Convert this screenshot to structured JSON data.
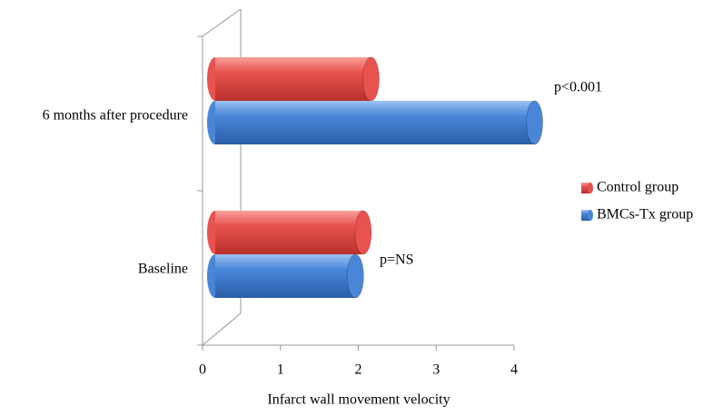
{
  "chart_data": {
    "type": "bar",
    "orientation": "horizontal",
    "categories": [
      "Baseline",
      "6 months after procedure"
    ],
    "series": [
      {
        "name": "Control group",
        "color": "#e8524f",
        "values": [
          1.9,
          2.0
        ]
      },
      {
        "name": "BMCs-Tx group",
        "color": "#4a86d8",
        "values": [
          1.8,
          4.1
        ]
      }
    ],
    "xlabel": "Infarct wall movement velocity",
    "xlim": [
      0,
      4
    ],
    "xticks": [
      0,
      1,
      2,
      3,
      4
    ],
    "annotations": [
      "p=NS",
      "p<0.001"
    ],
    "legend": "right"
  }
}
